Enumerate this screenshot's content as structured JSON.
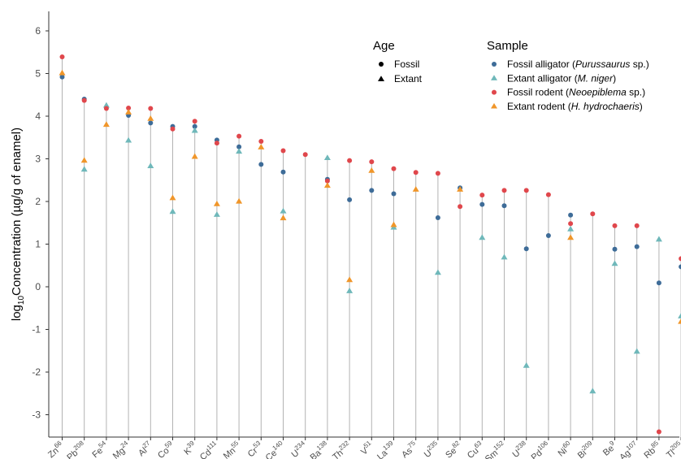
{
  "chart_data": {
    "type": "scatter",
    "ylabel_parts": [
      "log",
      "10",
      "Concentration (µg/g of enamel)"
    ],
    "ylim": [
      -3.4,
      6.5
    ],
    "yticks": [
      -3,
      -2,
      -1,
      0,
      1,
      2,
      3,
      4,
      5,
      6
    ],
    "grid": false,
    "legend_position": "top-right",
    "legend_age": {
      "title": "Age",
      "items": [
        {
          "label": "Fossil",
          "shape": "circle"
        },
        {
          "label": "Extant",
          "shape": "triangle"
        }
      ]
    },
    "legend_sample": {
      "title": "Sample",
      "items": [
        {
          "label_pre": "Fossil alligator (",
          "label_it": "Purussaurus",
          "label_post": " sp.)",
          "color": "#3E6C98",
          "shape": "circle"
        },
        {
          "label_pre": "Extant alligator (",
          "label_it": "M. niger",
          "label_post": ")",
          "color": "#6FB8BA",
          "shape": "triangle"
        },
        {
          "label_pre": "Fossil rodent (",
          "label_it": "Neoepiblema",
          "label_post": " sp.)",
          "color": "#E0474C",
          "shape": "circle"
        },
        {
          "label_pre": "Extant rodent (",
          "label_it": "H. hydrochaeris",
          "label_post": ")",
          "color": "#F0962A",
          "shape": "triangle"
        }
      ]
    },
    "categories": [
      {
        "el": "Zn",
        "iso": "66"
      },
      {
        "el": "Pb",
        "iso": "208"
      },
      {
        "el": "Fe",
        "iso": "54"
      },
      {
        "el": "Mg",
        "iso": "24"
      },
      {
        "el": "Al",
        "iso": "27"
      },
      {
        "el": "Co",
        "iso": "59"
      },
      {
        "el": "K",
        "iso": "39"
      },
      {
        "el": "Cd",
        "iso": "111"
      },
      {
        "el": "Mn",
        "iso": "55"
      },
      {
        "el": "Cr",
        "iso": "53"
      },
      {
        "el": "Ce",
        "iso": "140"
      },
      {
        "el": "U",
        "iso": "234"
      },
      {
        "el": "Ba",
        "iso": "138"
      },
      {
        "el": "Th",
        "iso": "232"
      },
      {
        "el": "V",
        "iso": "51"
      },
      {
        "el": "La",
        "iso": "139"
      },
      {
        "el": "As",
        "iso": "75"
      },
      {
        "el": "U",
        "iso": "235"
      },
      {
        "el": "Se",
        "iso": "82"
      },
      {
        "el": "Cu",
        "iso": "63"
      },
      {
        "el": "Sm",
        "iso": "152"
      },
      {
        "el": "U",
        "iso": "238"
      },
      {
        "el": "Pd",
        "iso": "106"
      },
      {
        "el": "Ni",
        "iso": "60"
      },
      {
        "el": "Bi",
        "iso": "209"
      },
      {
        "el": "Be",
        "iso": "9"
      },
      {
        "el": "Ag",
        "iso": "107"
      },
      {
        "el": "Rb",
        "iso": "85"
      },
      {
        "el": "Tl",
        "iso": "205"
      }
    ],
    "series": [
      {
        "name": "Fossil alligator (Purussaurus sp.)",
        "color": "#3E6C98",
        "shape": "circle",
        "values": [
          4.92,
          4.4,
          null,
          4.02,
          3.84,
          3.76,
          3.76,
          3.44,
          3.28,
          2.87,
          2.69,
          null,
          2.52,
          2.04,
          2.26,
          2.18,
          null,
          1.62,
          2.32,
          1.93,
          1.9,
          0.89,
          1.2,
          1.68,
          null,
          0.88,
          0.94,
          0.09,
          0.47
        ]
      },
      {
        "name": "Extant alligator (M. niger)",
        "color": "#6FB8BA",
        "shape": "triangle",
        "values": [
          null,
          2.75,
          4.25,
          3.43,
          2.83,
          1.76,
          3.66,
          1.69,
          3.17,
          null,
          1.77,
          null,
          3.02,
          -0.1,
          null,
          1.39,
          null,
          0.33,
          null,
          1.15,
          0.69,
          -1.85,
          null,
          1.35,
          -2.45,
          0.54,
          -1.52,
          1.11,
          -0.69
        ]
      },
      {
        "name": "Fossil rodent (Neoepiblema sp.)",
        "color": "#E0474C",
        "shape": "circle",
        "values": [
          5.39,
          4.37,
          4.18,
          4.19,
          4.18,
          3.7,
          3.88,
          3.37,
          3.53,
          3.41,
          3.19,
          3.1,
          2.48,
          2.96,
          2.93,
          2.77,
          2.68,
          2.66,
          1.88,
          2.15,
          2.26,
          2.26,
          2.16,
          1.48,
          1.71,
          1.43,
          1.43,
          -3.4,
          0.66
        ]
      },
      {
        "name": "Extant rodent (H. hydrochaeris)",
        "color": "#F0962A",
        "shape": "triangle",
        "values": [
          5.01,
          2.96,
          3.8,
          4.09,
          3.94,
          2.08,
          3.05,
          1.94,
          2.0,
          3.27,
          1.61,
          null,
          2.37,
          0.16,
          2.72,
          1.45,
          2.28,
          null,
          2.28,
          null,
          null,
          null,
          null,
          1.15,
          null,
          null,
          null,
          null,
          -0.82
        ]
      }
    ]
  }
}
